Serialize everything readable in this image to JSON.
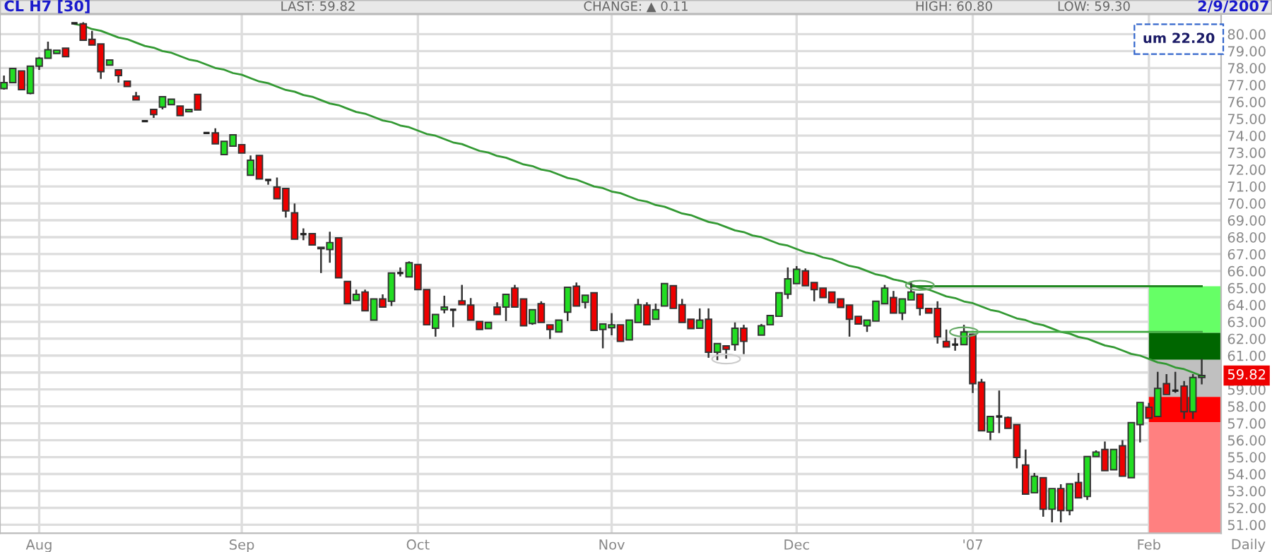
{
  "chart_data": {
    "type": "candlestick",
    "title": "CL H7 [30]",
    "categories": [
      null,
      null,
      null,
      null,
      "Aug",
      null,
      null,
      null,
      null,
      null,
      null,
      null,
      null,
      null,
      null,
      null,
      null,
      null,
      null,
      null,
      null,
      null,
      null,
      null,
      null,
      null,
      null,
      "Sep",
      null,
      null,
      null,
      null,
      null,
      null,
      null,
      null,
      null,
      null,
      null,
      null,
      null,
      null,
      null,
      null,
      null,
      null,
      null,
      "Oct",
      null,
      null,
      null,
      null,
      null,
      null,
      null,
      null,
      null,
      null,
      null,
      null,
      null,
      null,
      null,
      null,
      null,
      null,
      null,
      null,
      null,
      "Nov",
      null,
      null,
      null,
      null,
      null,
      null,
      null,
      null,
      null,
      null,
      null,
      null,
      null,
      null,
      null,
      null,
      null,
      null,
      null,
      null,
      "Dec",
      null,
      null,
      null,
      null,
      null,
      null,
      null,
      null,
      null,
      null,
      null,
      null,
      null,
      null,
      null,
      null,
      null,
      null,
      null,
      "'07",
      null,
      null,
      null,
      null,
      null,
      null,
      null,
      null,
      null,
      null,
      null,
      null,
      null,
      null,
      null,
      null,
      null,
      null,
      null,
      "Feb",
      null,
      null,
      null,
      null,
      null,
      null
    ],
    "ohlc": [
      [
        76.78,
        77.55,
        76.72,
        77.14
      ],
      [
        77.14,
        77.97,
        77.14,
        77.97
      ],
      [
        77.83,
        77.83,
        76.72,
        76.72
      ],
      [
        76.5,
        78.11,
        76.45,
        78.11
      ],
      [
        78.11,
        78.65,
        77.89,
        78.58
      ],
      [
        78.58,
        79.56,
        78.58,
        79.08
      ],
      [
        78.86,
        79.05,
        78.86,
        79.05
      ],
      [
        79.17,
        79.17,
        78.67,
        78.67
      ],
      [
        80.64,
        80.66,
        80.6,
        80.64
      ],
      [
        80.61,
        80.7,
        79.64,
        79.64
      ],
      [
        79.69,
        80.19,
        79.36,
        79.36
      ],
      [
        79.42,
        79.42,
        77.36,
        77.78
      ],
      [
        78.17,
        78.47,
        78.17,
        78.47
      ],
      [
        77.89,
        77.89,
        77.14,
        77.55
      ],
      [
        77.22,
        77.22,
        76.91,
        76.91
      ],
      [
        76.33,
        76.58,
        76.11,
        76.11
      ],
      [
        74.86,
        74.88,
        74.84,
        74.86
      ],
      [
        75.55,
        75.55,
        75.05,
        75.25
      ],
      [
        75.69,
        76.3,
        75.55,
        76.3
      ],
      [
        75.83,
        76.16,
        75.83,
        76.16
      ],
      [
        75.75,
        75.75,
        75.19,
        75.19
      ],
      [
        75.41,
        75.55,
        75.41,
        75.55
      ],
      [
        76.44,
        76.44,
        75.52,
        75.52
      ],
      [
        74.16,
        74.2,
        74.12,
        74.16
      ],
      [
        74.16,
        74.44,
        73.52,
        73.52
      ],
      [
        72.88,
        73.66,
        72.88,
        73.66
      ],
      [
        73.38,
        74.05,
        73.38,
        74.05
      ],
      [
        73.47,
        73.47,
        72.97,
        72.97
      ],
      [
        71.66,
        72.83,
        71.66,
        72.55
      ],
      [
        72.83,
        72.83,
        71.44,
        71.44
      ],
      [
        71.38,
        71.4,
        71.1,
        71.38
      ],
      [
        70.96,
        71.52,
        70.27,
        70.27
      ],
      [
        70.88,
        70.88,
        69.16,
        69.55
      ],
      [
        69.44,
        69.99,
        67.88,
        67.88
      ],
      [
        68.18,
        68.52,
        67.82,
        68.18
      ],
      [
        68.21,
        68.21,
        67.54,
        67.54
      ],
      [
        67.4,
        67.4,
        65.88,
        67.32
      ],
      [
        67.27,
        68.32,
        66.49,
        67.68
      ],
      [
        67.96,
        67.96,
        65.6,
        65.6
      ],
      [
        65.38,
        65.38,
        64.07,
        64.07
      ],
      [
        64.26,
        64.9,
        64.26,
        64.62
      ],
      [
        64.76,
        64.9,
        63.65,
        63.65
      ],
      [
        63.1,
        64.35,
        63.1,
        64.35
      ],
      [
        64.35,
        64.62,
        63.87,
        63.87
      ],
      [
        64.21,
        65.88,
        63.93,
        65.88
      ],
      [
        65.88,
        66.21,
        65.68,
        65.88
      ],
      [
        65.65,
        66.57,
        65.65,
        66.49
      ],
      [
        66.38,
        66.38,
        64.9,
        64.9
      ],
      [
        64.9,
        64.9,
        62.82,
        62.82
      ],
      [
        62.62,
        63.43,
        62.12,
        63.43
      ],
      [
        63.71,
        64.54,
        63.5,
        63.87
      ],
      [
        63.71,
        63.75,
        62.68,
        63.71
      ],
      [
        64.24,
        65.18,
        64.01,
        64.01
      ],
      [
        63.98,
        64.4,
        63.1,
        63.1
      ],
      [
        63.01,
        63.01,
        62.54,
        62.54
      ],
      [
        62.6,
        62.96,
        62.6,
        62.96
      ],
      [
        63.87,
        64.15,
        63.43,
        63.43
      ],
      [
        63.87,
        64.62,
        63.04,
        64.62
      ],
      [
        64.99,
        65.18,
        63.87,
        63.87
      ],
      [
        64.35,
        64.35,
        62.76,
        62.76
      ],
      [
        62.9,
        63.71,
        62.82,
        63.71
      ],
      [
        64.07,
        64.21,
        62.96,
        62.96
      ],
      [
        62.82,
        62.82,
        61.98,
        62.54
      ],
      [
        62.4,
        63.1,
        62.4,
        63.1
      ],
      [
        63.57,
        65.04,
        63.04,
        65.04
      ],
      [
        65.1,
        65.32,
        63.93,
        63.93
      ],
      [
        64.15,
        64.57,
        63.79,
        64.57
      ],
      [
        64.71,
        64.71,
        62.49,
        62.49
      ],
      [
        62.54,
        62.87,
        61.43,
        62.87
      ],
      [
        62.65,
        63.51,
        62.2,
        62.82
      ],
      [
        62.82,
        62.82,
        61.84,
        61.84
      ],
      [
        61.93,
        63.1,
        61.93,
        63.1
      ],
      [
        62.96,
        64.35,
        62.96,
        64.01
      ],
      [
        63.98,
        64.15,
        62.82,
        62.82
      ],
      [
        63.15,
        64.07,
        63.15,
        63.71
      ],
      [
        63.93,
        65.26,
        63.93,
        65.26
      ],
      [
        65.13,
        65.13,
        63.79,
        63.79
      ],
      [
        64.01,
        64.35,
        62.96,
        62.96
      ],
      [
        63.15,
        63.15,
        62.6,
        62.6
      ],
      [
        62.62,
        63.79,
        62.62,
        63.1
      ],
      [
        63.15,
        63.79,
        60.87,
        61.2
      ],
      [
        61.2,
        61.71,
        60.73,
        61.71
      ],
      [
        61.57,
        61.57,
        60.82,
        61.37
      ],
      [
        61.65,
        62.96,
        61.29,
        62.62
      ],
      [
        62.62,
        62.82,
        61.09,
        61.84
      ],
      null,
      [
        62.21,
        62.87,
        62.21,
        62.76
      ],
      [
        62.82,
        63.37,
        62.82,
        63.37
      ],
      [
        63.32,
        64.71,
        63.32,
        64.71
      ],
      [
        64.63,
        66.21,
        64.35,
        65.54
      ],
      [
        65.26,
        66.29,
        65.26,
        66.1
      ],
      [
        66.01,
        66.15,
        65.13,
        65.13
      ],
      [
        65.32,
        65.32,
        64.21,
        64.9
      ],
      [
        64.99,
        64.99,
        64.43,
        64.43
      ],
      [
        64.76,
        64.76,
        64.13,
        64.13
      ],
      [
        64.35,
        64.35,
        63.85,
        63.85
      ],
      [
        63.98,
        63.98,
        62.12,
        63.15
      ],
      [
        63.32,
        63.32,
        62.87,
        62.87
      ],
      [
        62.76,
        63.1,
        62.4,
        63.1
      ],
      [
        63.04,
        64.21,
        63.04,
        64.21
      ],
      [
        64.07,
        65.18,
        64.07,
        64.99
      ],
      [
        64.43,
        64.82,
        63.51,
        63.51
      ],
      [
        63.51,
        64.35,
        63.1,
        64.35
      ],
      [
        64.29,
        65.32,
        64.29,
        64.76
      ],
      [
        64.63,
        64.63,
        63.37,
        63.79
      ],
      [
        63.79,
        63.79,
        63.51,
        63.51
      ],
      [
        63.79,
        64.21,
        61.71,
        62.12
      ],
      [
        61.84,
        62.54,
        61.51,
        61.51
      ],
      [
        61.65,
        62.04,
        61.29,
        61.65
      ],
      [
        61.65,
        62.82,
        61.65,
        62.4
      ],
      [
        62.26,
        62.26,
        58.79,
        59.34
      ],
      [
        59.43,
        59.62,
        56.56,
        56.56
      ],
      [
        56.48,
        57.4,
        56.0,
        57.4
      ],
      [
        57.4,
        58.93,
        56.42,
        57.4
      ],
      [
        57.34,
        57.4,
        56.7,
        56.7
      ],
      [
        56.92,
        56.92,
        54.34,
        54.98
      ],
      [
        54.53,
        55.45,
        52.81,
        52.81
      ],
      [
        52.89,
        54.06,
        52.89,
        53.87
      ],
      [
        53.78,
        53.78,
        51.48,
        51.92
      ],
      [
        51.92,
        53.14,
        51.14,
        53.14
      ],
      [
        53.14,
        53.4,
        51.14,
        51.84
      ],
      [
        51.84,
        53.42,
        51.56,
        53.42
      ],
      [
        53.5,
        54.06,
        52.59,
        52.59
      ],
      [
        52.67,
        55.03,
        52.47,
        55.03
      ],
      [
        55.03,
        55.4,
        55.03,
        55.3
      ],
      [
        55.45,
        55.92,
        54.2,
        54.2
      ],
      [
        54.25,
        55.45,
        54.25,
        55.45
      ],
      [
        55.67,
        56.0,
        53.87,
        53.87
      ],
      [
        53.78,
        57.04,
        53.78,
        57.04
      ],
      [
        56.92,
        58.23,
        55.87,
        58.23
      ],
      [
        57.95,
        58.2,
        57.31,
        57.31
      ],
      [
        57.4,
        60.04,
        57.4,
        59.06
      ],
      [
        59.34,
        59.9,
        58.7,
        58.7
      ],
      [
        58.93,
        60.04,
        58.8,
        58.93
      ],
      [
        59.2,
        59.5,
        57.26,
        57.68
      ],
      [
        57.68,
        59.9,
        57.26,
        59.71
      ],
      [
        59.71,
        60.8,
        59.3,
        59.82
      ]
    ],
    "series": [
      {
        "type": "line",
        "color": "#339933",
        "values": [
          null,
          null,
          null,
          null,
          null,
          null,
          null,
          null,
          80.6,
          80.5,
          80.3,
          80.2,
          80.0,
          79.8,
          79.7,
          79.5,
          79.3,
          79.2,
          79.0,
          78.9,
          78.7,
          78.5,
          78.4,
          78.2,
          78.0,
          77.9,
          77.7,
          77.6,
          77.4,
          77.2,
          77.1,
          76.9,
          76.7,
          76.6,
          76.4,
          76.3,
          76.1,
          75.9,
          75.8,
          75.6,
          75.4,
          75.3,
          75.1,
          74.9,
          74.8,
          74.6,
          74.5,
          74.3,
          74.1,
          74.0,
          73.8,
          73.6,
          73.5,
          73.3,
          73.1,
          73.0,
          72.8,
          72.7,
          72.5,
          72.3,
          72.2,
          72.0,
          71.9,
          71.7,
          71.5,
          71.4,
          71.2,
          71.0,
          70.9,
          70.7,
          70.6,
          70.4,
          70.2,
          70.1,
          69.9,
          69.8,
          69.6,
          69.4,
          69.3,
          69.1,
          68.9,
          68.8,
          68.6,
          68.4,
          68.3,
          68.1,
          68.0,
          67.8,
          67.6,
          67.5,
          67.3,
          67.1,
          67.0,
          66.8,
          66.7,
          66.5,
          66.3,
          66.2,
          66.0,
          65.8,
          65.7,
          65.5,
          65.4,
          65.2,
          65.0,
          64.9,
          64.7,
          64.5,
          64.4,
          64.2,
          64.1,
          63.9,
          63.7,
          63.6,
          63.4,
          63.2,
          63.1,
          62.9,
          62.8,
          62.6,
          62.4,
          62.3,
          62.1,
          62.0,
          61.8,
          61.6,
          61.5,
          61.3,
          61.1,
          61.0,
          60.8,
          60.6,
          60.5,
          60.3,
          60.2,
          60.0,
          59.8
        ]
      },
      {
        "type": "line",
        "color": "#228822",
        "values": [
          null,
          null,
          null,
          null,
          null,
          null,
          null,
          null,
          null,
          null,
          null,
          null,
          null,
          null,
          null,
          null,
          null,
          null,
          null,
          null,
          null,
          null,
          null,
          null,
          null,
          null,
          null,
          null,
          null,
          null,
          null,
          null,
          null,
          null,
          null,
          null,
          null,
          null,
          null,
          null,
          null,
          null,
          null,
          null,
          null,
          null,
          null,
          null,
          null,
          null,
          null,
          null,
          null,
          null,
          null,
          null,
          null,
          null,
          null,
          null,
          null,
          null,
          null,
          null,
          null,
          null,
          null,
          null,
          null,
          null,
          null,
          null,
          null,
          null,
          null,
          null,
          null,
          null,
          null,
          null,
          null,
          null,
          null,
          null,
          null,
          null,
          null,
          null,
          null,
          null,
          null,
          null,
          null,
          null,
          null,
          null,
          null,
          null,
          null,
          null,
          null,
          null,
          null,
          65.1,
          65.1,
          65.1,
          65.1,
          65.1,
          65.1,
          65.1,
          65.1,
          65.1,
          65.1,
          65.1,
          65.1,
          65.1,
          65.1,
          65.1,
          65.1,
          65.1,
          65.1,
          65.1,
          65.1,
          65.1,
          65.1,
          65.1,
          65.1,
          65.1,
          65.1,
          65.1,
          65.1,
          65.1,
          65.1,
          65.1,
          65.1,
          65.1,
          65.1
        ]
      },
      {
        "type": "line",
        "color": "#44aa44",
        "values": [
          null,
          null,
          null,
          null,
          null,
          null,
          null,
          null,
          null,
          null,
          null,
          null,
          null,
          null,
          null,
          null,
          null,
          null,
          null,
          null,
          null,
          null,
          null,
          null,
          null,
          null,
          null,
          null,
          null,
          null,
          null,
          null,
          null,
          null,
          null,
          null,
          null,
          null,
          null,
          null,
          null,
          null,
          null,
          null,
          null,
          null,
          null,
          null,
          null,
          null,
          null,
          null,
          null,
          null,
          null,
          null,
          null,
          null,
          null,
          null,
          null,
          null,
          null,
          null,
          null,
          null,
          null,
          null,
          null,
          null,
          null,
          null,
          null,
          null,
          null,
          null,
          null,
          null,
          null,
          null,
          null,
          null,
          null,
          null,
          null,
          null,
          null,
          null,
          null,
          null,
          null,
          null,
          null,
          null,
          null,
          null,
          null,
          null,
          null,
          null,
          null,
          null,
          null,
          null,
          null,
          null,
          null,
          null,
          null,
          62.4,
          62.4,
          62.4,
          62.4,
          62.4,
          62.4,
          62.4,
          62.4,
          62.4,
          62.4,
          62.4,
          62.4,
          62.4,
          62.4,
          62.4,
          62.4,
          62.4,
          62.4,
          62.4,
          62.4,
          62.4,
          62.4,
          62.4,
          62.4,
          62.4,
          62.4,
          62.4,
          62.4
        ]
      }
    ],
    "bands": [
      {
        "axis": "y",
        "from": 62.35,
        "to": 65.1,
        "color": "#66ff66"
      },
      {
        "axis": "y",
        "from": 60.75,
        "to": 62.35,
        "color": "#006600"
      },
      {
        "axis": "y",
        "from": 58.56,
        "to": 60.75,
        "color": "#c0c0c0"
      },
      {
        "axis": "y",
        "from": 57.06,
        "to": 58.56,
        "color": "#ff0000"
      },
      {
        "axis": "y",
        "from": 50.5,
        "to": 57.06,
        "color": "#ff8080"
      }
    ],
    "ylim": [
      50.5,
      81.17
    ],
    "yticks": [
      {
        "value": 51,
        "label": "51.00"
      },
      {
        "value": 52,
        "label": "52.00"
      },
      {
        "value": 53,
        "label": "53.00"
      },
      {
        "value": 54,
        "label": "54.00"
      },
      {
        "value": 55,
        "label": "55.00"
      },
      {
        "value": 56,
        "label": "56.00"
      },
      {
        "value": 57,
        "label": "57.00"
      },
      {
        "value": 58,
        "label": "58.00"
      },
      {
        "value": 59,
        "label": "59.00"
      },
      {
        "value": 60,
        "label": null
      },
      {
        "value": 61,
        "label": "61.00"
      },
      {
        "value": 62,
        "label": "62.00"
      },
      {
        "value": 63,
        "label": "63.00"
      },
      {
        "value": 64,
        "label": "64.00"
      },
      {
        "value": 65,
        "label": "65.00"
      },
      {
        "value": 66,
        "label": "66.00"
      },
      {
        "value": 67,
        "label": "67.00"
      },
      {
        "value": 68,
        "label": "68.00"
      },
      {
        "value": 69,
        "label": "69.00"
      },
      {
        "value": 70,
        "label": "70.00"
      },
      {
        "value": 71,
        "label": "71.00"
      },
      {
        "value": 72,
        "label": "72.00"
      },
      {
        "value": 73,
        "label": "73.00"
      },
      {
        "value": 74,
        "label": "74.00"
      },
      {
        "value": 75,
        "label": "75.00"
      },
      {
        "value": 76,
        "label": "76.00"
      },
      {
        "value": 77,
        "label": "77.00"
      },
      {
        "value": 78,
        "label": "78.00"
      },
      {
        "value": 79,
        "label": "79.00"
      },
      {
        "value": 80,
        "label": "80.00"
      }
    ],
    "grid": true,
    "annotations": [
      "LAST: 59.82",
      "CHANGE: ▲ 0.11",
      "HIGH: 60.80",
      "LOW: 59.30",
      "2/9/2007",
      "um 22.20",
      "Daily",
      {
        "text": "59.82",
        "y": 59.82
      }
    ]
  }
}
